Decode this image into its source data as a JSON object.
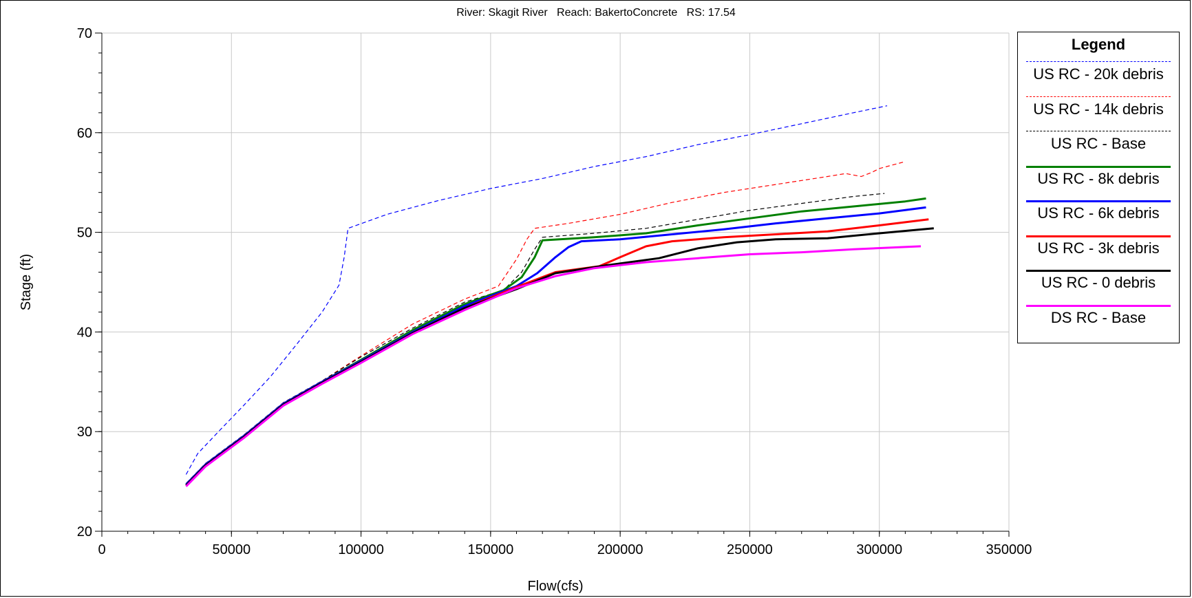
{
  "title": "River: Skagit River   Reach: BakertoConcrete   RS: 17.54",
  "legend_title": "Legend",
  "chart_data": {
    "type": "line",
    "title": "River: Skagit River   Reach: BakertoConcrete   RS: 17.54",
    "xlabel": "Flow(cfs)",
    "ylabel": "Stage (ft)",
    "xlim": [
      0,
      350000
    ],
    "ylim": [
      20,
      70
    ],
    "xticks": [
      "0",
      "50000",
      "100000",
      "150000",
      "200000",
      "250000",
      "300000",
      "350000"
    ],
    "yticks": [
      "20",
      "30",
      "40",
      "50",
      "60",
      "70"
    ],
    "grid": true,
    "legend_position": "right",
    "series": [
      {
        "name": "US RC - 20k debris",
        "color": "#0000ff",
        "style": "dashed",
        "points": [
          [
            32500,
            25.7
          ],
          [
            37000,
            27.8
          ],
          [
            45000,
            30
          ],
          [
            55000,
            32.7
          ],
          [
            65000,
            35.5
          ],
          [
            75000,
            38.7
          ],
          [
            85000,
            42
          ],
          [
            91500,
            44.7
          ],
          [
            93500,
            47.5
          ],
          [
            95000,
            50.4
          ],
          [
            110000,
            51.8
          ],
          [
            130000,
            53.2
          ],
          [
            150000,
            54.4
          ],
          [
            170000,
            55.4
          ],
          [
            190000,
            56.6
          ],
          [
            210000,
            57.6
          ],
          [
            230000,
            58.8
          ],
          [
            250000,
            59.8
          ],
          [
            270000,
            60.9
          ],
          [
            290000,
            62.0
          ],
          [
            303000,
            62.7
          ]
        ]
      },
      {
        "name": "US RC - 14k debris",
        "color": "#ff0000",
        "style": "dashed",
        "points": [
          [
            32500,
            24.8
          ],
          [
            40000,
            26.8
          ],
          [
            55000,
            29.7
          ],
          [
            70000,
            32.9
          ],
          [
            85000,
            35.1
          ],
          [
            100000,
            37.6
          ],
          [
            120000,
            40.8
          ],
          [
            140000,
            43.3
          ],
          [
            153000,
            44.6
          ],
          [
            160000,
            47.3
          ],
          [
            164000,
            49.3
          ],
          [
            167000,
            50.4
          ],
          [
            180000,
            50.9
          ],
          [
            200000,
            51.8
          ],
          [
            220000,
            53.0
          ],
          [
            240000,
            54.0
          ],
          [
            260000,
            54.8
          ],
          [
            280000,
            55.6
          ],
          [
            287000,
            55.9
          ],
          [
            293000,
            55.6
          ],
          [
            297000,
            56.0
          ],
          [
            300000,
            56.4
          ],
          [
            310000,
            57.1
          ]
        ]
      },
      {
        "name": "US RC - Base",
        "color": "#000000",
        "style": "dashed",
        "points": [
          [
            32500,
            24.8
          ],
          [
            40000,
            26.8
          ],
          [
            55000,
            29.7
          ],
          [
            70000,
            32.9
          ],
          [
            85000,
            35.1
          ],
          [
            100000,
            37.5
          ],
          [
            120000,
            40.4
          ],
          [
            140000,
            43.0
          ],
          [
            155000,
            44.2
          ],
          [
            162000,
            46.0
          ],
          [
            167000,
            48.3
          ],
          [
            170000,
            49.5
          ],
          [
            190000,
            49.9
          ],
          [
            210000,
            50.4
          ],
          [
            230000,
            51.3
          ],
          [
            250000,
            52.2
          ],
          [
            270000,
            52.9
          ],
          [
            290000,
            53.6
          ],
          [
            302000,
            53.9
          ]
        ]
      },
      {
        "name": "US RC - 8k debris",
        "color": "#008000",
        "style": "solid",
        "points": [
          [
            32500,
            24.7
          ],
          [
            40000,
            26.7
          ],
          [
            55000,
            29.6
          ],
          [
            70000,
            32.8
          ],
          [
            85000,
            35.0
          ],
          [
            100000,
            37.2
          ],
          [
            120000,
            40.2
          ],
          [
            140000,
            42.8
          ],
          [
            155000,
            44.2
          ],
          [
            162000,
            45.5
          ],
          [
            167000,
            47.5
          ],
          [
            170000,
            49.2
          ],
          [
            190000,
            49.5
          ],
          [
            210000,
            49.9
          ],
          [
            230000,
            50.7
          ],
          [
            250000,
            51.4
          ],
          [
            270000,
            52.1
          ],
          [
            290000,
            52.6
          ],
          [
            310000,
            53.1
          ],
          [
            318000,
            53.4
          ]
        ]
      },
      {
        "name": "US RC - 6k debris",
        "color": "#0000ff",
        "style": "solid",
        "points": [
          [
            32500,
            24.7
          ],
          [
            40000,
            26.7
          ],
          [
            55000,
            29.6
          ],
          [
            70000,
            32.8
          ],
          [
            85000,
            35.0
          ],
          [
            100000,
            37.1
          ],
          [
            120000,
            40.0
          ],
          [
            140000,
            42.6
          ],
          [
            160000,
            44.6
          ],
          [
            168000,
            45.9
          ],
          [
            175000,
            47.5
          ],
          [
            180000,
            48.5
          ],
          [
            185000,
            49.1
          ],
          [
            200000,
            49.3
          ],
          [
            220000,
            49.8
          ],
          [
            240000,
            50.3
          ],
          [
            260000,
            50.9
          ],
          [
            280000,
            51.4
          ],
          [
            300000,
            51.9
          ],
          [
            318000,
            52.5
          ]
        ]
      },
      {
        "name": "US RC - 3k debris",
        "color": "#ff0000",
        "style": "solid",
        "points": [
          [
            32500,
            24.6
          ],
          [
            40000,
            26.6
          ],
          [
            55000,
            29.5
          ],
          [
            70000,
            32.7
          ],
          [
            85000,
            34.9
          ],
          [
            100000,
            37.0
          ],
          [
            120000,
            39.9
          ],
          [
            140000,
            42.4
          ],
          [
            160000,
            44.5
          ],
          [
            175000,
            46.0
          ],
          [
            192000,
            46.6
          ],
          [
            200000,
            47.5
          ],
          [
            210000,
            48.6
          ],
          [
            220000,
            49.1
          ],
          [
            240000,
            49.5
          ],
          [
            260000,
            49.8
          ],
          [
            280000,
            50.1
          ],
          [
            300000,
            50.7
          ],
          [
            319000,
            51.3
          ]
        ]
      },
      {
        "name": "US RC - 0 debris",
        "color": "#000000",
        "style": "solid",
        "points": [
          [
            32500,
            24.6
          ],
          [
            40000,
            26.6
          ],
          [
            55000,
            29.5
          ],
          [
            70000,
            32.7
          ],
          [
            85000,
            34.9
          ],
          [
            100000,
            37.0
          ],
          [
            120000,
            39.9
          ],
          [
            140000,
            42.4
          ],
          [
            160000,
            44.3
          ],
          [
            175000,
            45.9
          ],
          [
            195000,
            46.7
          ],
          [
            215000,
            47.4
          ],
          [
            230000,
            48.4
          ],
          [
            245000,
            49.0
          ],
          [
            260000,
            49.3
          ],
          [
            280000,
            49.4
          ],
          [
            300000,
            49.9
          ],
          [
            321000,
            50.4
          ]
        ]
      },
      {
        "name": "DS RC - Base",
        "color": "#ff00ff",
        "style": "solid",
        "points": [
          [
            32500,
            24.5
          ],
          [
            40000,
            26.5
          ],
          [
            55000,
            29.4
          ],
          [
            70000,
            32.6
          ],
          [
            85000,
            34.8
          ],
          [
            100000,
            36.9
          ],
          [
            120000,
            39.8
          ],
          [
            140000,
            42.2
          ],
          [
            160000,
            44.4
          ],
          [
            175000,
            45.6
          ],
          [
            190000,
            46.4
          ],
          [
            210000,
            47.0
          ],
          [
            230000,
            47.4
          ],
          [
            250000,
            47.8
          ],
          [
            270000,
            48.0
          ],
          [
            290000,
            48.3
          ],
          [
            316000,
            48.6
          ]
        ]
      }
    ]
  }
}
